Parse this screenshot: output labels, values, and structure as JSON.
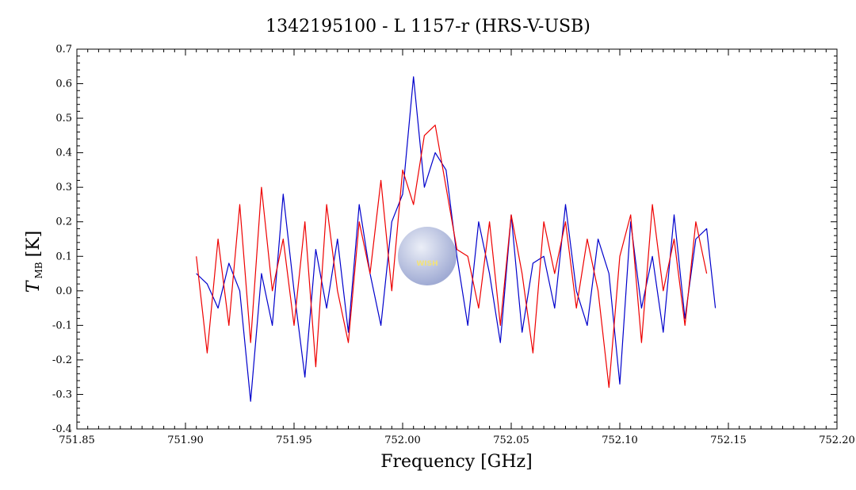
{
  "chart_data": {
    "type": "line",
    "title": "1342195100 - L 1157-r (HRS-V-USB)",
    "xlabel": "Frequency [GHz]",
    "ylabel": {
      "symbol": "T",
      "subscript": "MB",
      "unit": "[K]"
    },
    "xlim": [
      751.85,
      752.2
    ],
    "ylim": [
      -0.4,
      0.7
    ],
    "xticks": [
      "751.85",
      "751.90",
      "751.95",
      "752.00",
      "752.05",
      "752.10",
      "752.15",
      "752.20"
    ],
    "yticks": [
      "-0.4",
      "-0.3",
      "-0.2",
      "-0.1",
      "0.0",
      "0.1",
      "0.2",
      "0.3",
      "0.4",
      "0.5",
      "0.6",
      "0.7"
    ],
    "grid": false,
    "series": [
      {
        "color": "#0000cc",
        "x": [
          751.905,
          751.91,
          751.915,
          751.92,
          751.925,
          751.93,
          751.935,
          751.94,
          751.945,
          751.95,
          751.955,
          751.96,
          751.965,
          751.97,
          751.975,
          751.98,
          751.985,
          751.99,
          751.995,
          752.0,
          752.005,
          752.01,
          752.015,
          752.02,
          752.025,
          752.03,
          752.035,
          752.04,
          752.045,
          752.05,
          752.055,
          752.06,
          752.065,
          752.07,
          752.075,
          752.08,
          752.085,
          752.09,
          752.095,
          752.1,
          752.105,
          752.11,
          752.115,
          752.12,
          752.125,
          752.13,
          752.135,
          752.14,
          752.144
        ],
        "y": [
          0.05,
          0.02,
          -0.05,
          0.08,
          0.0,
          -0.32,
          0.05,
          -0.1,
          0.28,
          0.0,
          -0.25,
          0.12,
          -0.05,
          0.15,
          -0.12,
          0.25,
          0.05,
          -0.1,
          0.2,
          0.28,
          0.62,
          0.3,
          0.4,
          0.35,
          0.1,
          -0.1,
          0.2,
          0.05,
          -0.15,
          0.22,
          -0.12,
          0.08,
          0.1,
          -0.05,
          0.25,
          0.0,
          -0.1,
          0.15,
          0.05,
          -0.27,
          0.2,
          -0.05,
          0.1,
          -0.12,
          0.22,
          -0.08,
          0.15,
          0.18,
          -0.05
        ]
      },
      {
        "color": "#ee0000",
        "x": [
          751.905,
          751.91,
          751.915,
          751.92,
          751.925,
          751.93,
          751.935,
          751.94,
          751.945,
          751.95,
          751.955,
          751.96,
          751.965,
          751.97,
          751.975,
          751.98,
          751.985,
          751.99,
          751.995,
          752.0,
          752.005,
          752.01,
          752.015,
          752.02,
          752.025,
          752.03,
          752.035,
          752.04,
          752.045,
          752.05,
          752.055,
          752.06,
          752.065,
          752.07,
          752.075,
          752.08,
          752.085,
          752.09,
          752.095,
          752.1,
          752.105,
          752.11,
          752.115,
          752.12,
          752.125,
          752.13,
          752.135,
          752.14
        ],
        "y": [
          0.1,
          -0.18,
          0.15,
          -0.1,
          0.25,
          -0.15,
          0.3,
          0.0,
          0.15,
          -0.1,
          0.2,
          -0.22,
          0.25,
          0.0,
          -0.15,
          0.2,
          0.05,
          0.32,
          0.0,
          0.35,
          0.25,
          0.45,
          0.48,
          0.3,
          0.12,
          0.1,
          -0.05,
          0.2,
          -0.1,
          0.22,
          0.05,
          -0.18,
          0.2,
          0.05,
          0.2,
          -0.05,
          0.15,
          0.0,
          -0.28,
          0.1,
          0.22,
          -0.15,
          0.25,
          0.0,
          0.15,
          -0.1,
          0.2,
          0.05
        ]
      }
    ]
  },
  "logo": {
    "text": "WISH"
  }
}
